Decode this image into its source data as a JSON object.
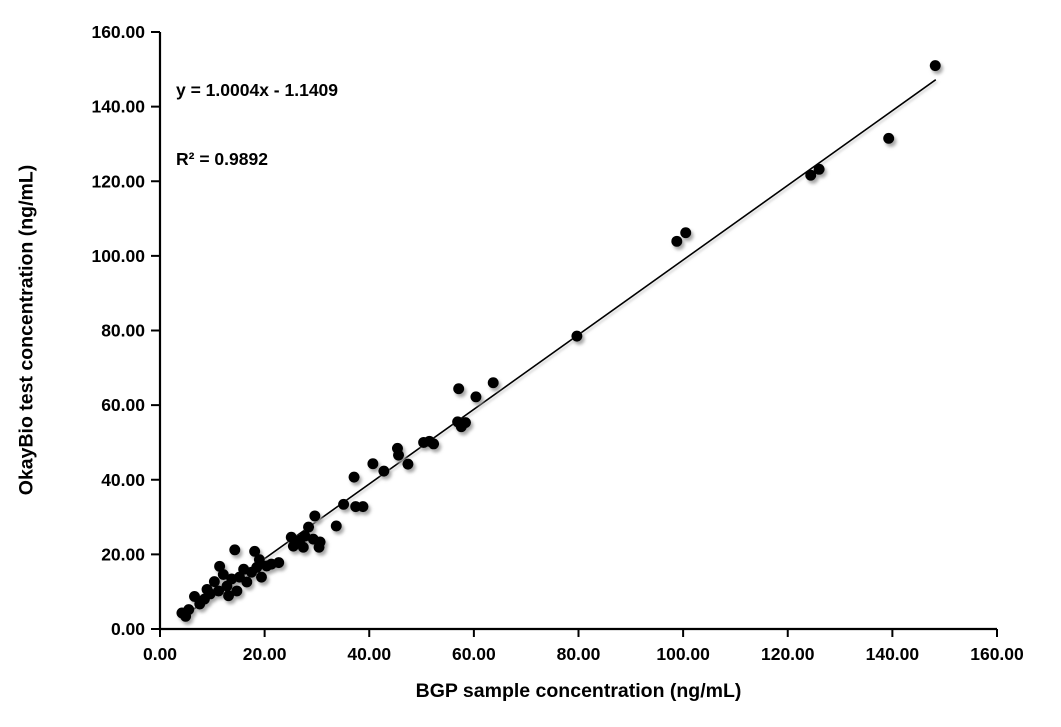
{
  "chart_data": {
    "type": "scatter",
    "title": "",
    "xlabel": "BGP sample concentration (ng/mL)",
    "ylabel": "OkayBio test concentration (ng/mL)",
    "xlim": [
      0,
      160
    ],
    "ylim": [
      0,
      160
    ],
    "xticks": [
      0,
      20,
      40,
      60,
      80,
      100,
      120,
      140,
      160
    ],
    "yticks": [
      0,
      20,
      40,
      60,
      80,
      100,
      120,
      140,
      160
    ],
    "xtick_labels": [
      "0.00",
      "20.00",
      "40.00",
      "60.00",
      "80.00",
      "100.00",
      "120.00",
      "140.00",
      "160.00"
    ],
    "ytick_labels": [
      "0.00",
      "20.00",
      "40.00",
      "60.00",
      "80.00",
      "100.00",
      "120.00",
      "140.00",
      "160.00"
    ],
    "grid": false,
    "legend": "none",
    "annotations": [
      "y = 1.0004x - 1.1409",
      "R² = 0.9892"
    ],
    "trendline": {
      "slope": 1.0004,
      "intercept": -1.1409,
      "x_range": [
        4.2,
        148.3
      ]
    },
    "points": [
      [
        4.2,
        4.3
      ],
      [
        4.9,
        3.4
      ],
      [
        5.5,
        5.2
      ],
      [
        6.6,
        8.7
      ],
      [
        7.6,
        6.7
      ],
      [
        8.5,
        8.0
      ],
      [
        9.0,
        10.6
      ],
      [
        9.6,
        9.4
      ],
      [
        10.4,
        12.7
      ],
      [
        11.2,
        10.2
      ],
      [
        11.4,
        16.8
      ],
      [
        12.1,
        14.6
      ],
      [
        12.8,
        11.5
      ],
      [
        13.1,
        8.9
      ],
      [
        13.7,
        13.4
      ],
      [
        14.3,
        21.2
      ],
      [
        14.7,
        10.2
      ],
      [
        15.2,
        13.9
      ],
      [
        16.0,
        16.0
      ],
      [
        16.6,
        12.6
      ],
      [
        17.5,
        15.2
      ],
      [
        18.1,
        20.8
      ],
      [
        18.5,
        16.5
      ],
      [
        19.0,
        18.6
      ],
      [
        19.4,
        13.9
      ],
      [
        20.4,
        16.9
      ],
      [
        21.3,
        17.4
      ],
      [
        22.7,
        17.8
      ],
      [
        25.1,
        24.6
      ],
      [
        25.5,
        22.2
      ],
      [
        26.7,
        23.8
      ],
      [
        27.4,
        21.9
      ],
      [
        27.7,
        24.9
      ],
      [
        28.4,
        27.3
      ],
      [
        29.3,
        24.1
      ],
      [
        29.6,
        30.3
      ],
      [
        30.4,
        21.9
      ],
      [
        30.6,
        23.3
      ],
      [
        33.7,
        27.6
      ],
      [
        35.1,
        33.4
      ],
      [
        37.1,
        40.7
      ],
      [
        37.4,
        32.8
      ],
      [
        38.8,
        32.8
      ],
      [
        40.7,
        44.3
      ],
      [
        42.8,
        42.3
      ],
      [
        45.4,
        48.4
      ],
      [
        45.6,
        46.6
      ],
      [
        47.4,
        44.2
      ],
      [
        50.4,
        50.0
      ],
      [
        51.5,
        50.3
      ],
      [
        52.3,
        49.6
      ],
      [
        56.9,
        55.5
      ],
      [
        57.6,
        54.2
      ],
      [
        58.4,
        55.3
      ],
      [
        57.1,
        64.4
      ],
      [
        60.4,
        62.2
      ],
      [
        63.7,
        66.0
      ],
      [
        79.7,
        78.5
      ],
      [
        98.8,
        103.9
      ],
      [
        100.5,
        106.2
      ],
      [
        124.4,
        121.6
      ],
      [
        126.0,
        123.2
      ],
      [
        139.3,
        131.5
      ],
      [
        148.2,
        151.0
      ]
    ],
    "colors": {
      "marker": "#000000",
      "line": "#000000",
      "axis": "#000000",
      "background": "#ffffff",
      "shadow": "#9e9e9e"
    }
  }
}
